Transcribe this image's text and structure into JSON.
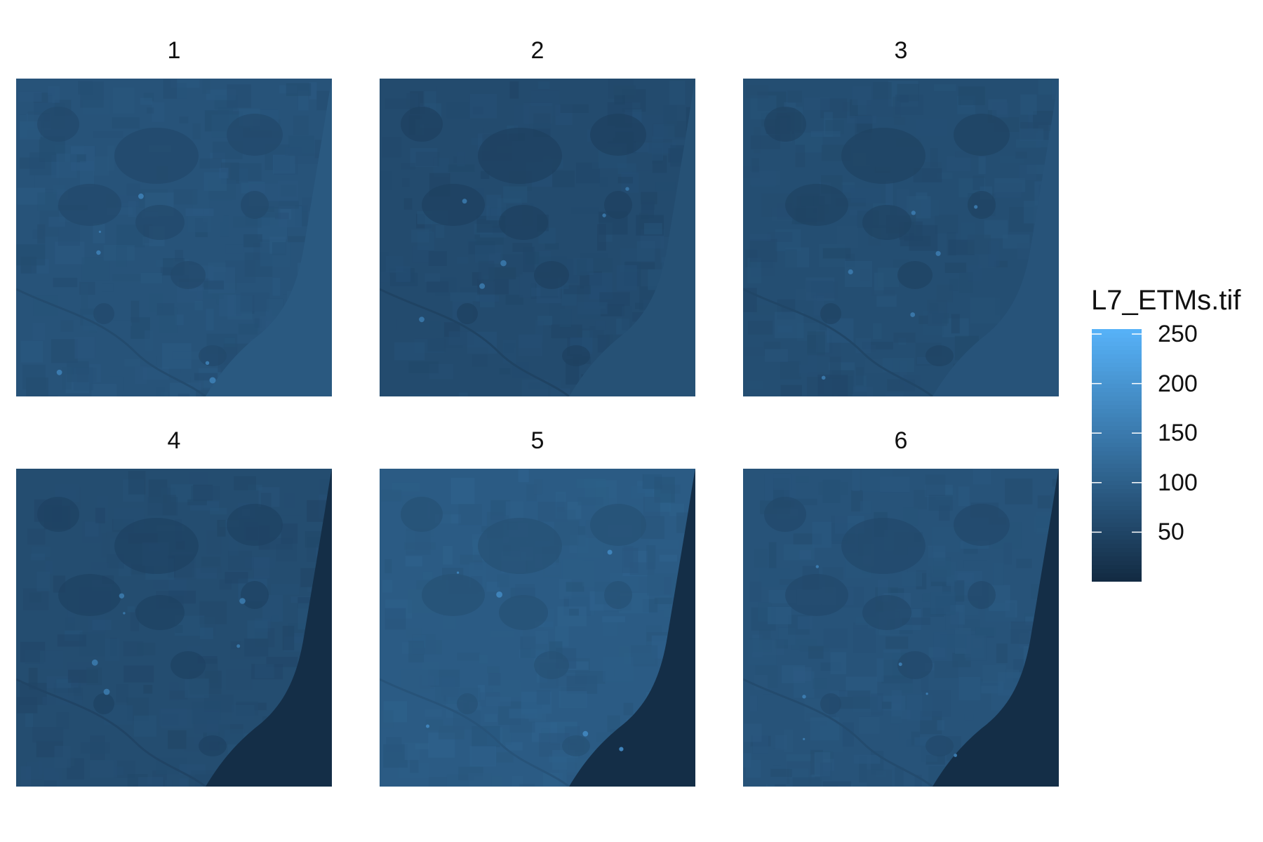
{
  "chart_data": {
    "type": "heatmap",
    "layers": [
      {
        "title": "1",
        "brightness": 0.3,
        "sea": "light"
      },
      {
        "title": "2",
        "brightness": 0.24,
        "sea": "light"
      },
      {
        "title": "3",
        "brightness": 0.26,
        "sea": "light"
      },
      {
        "title": "4",
        "brightness": 0.25,
        "sea": "dark"
      },
      {
        "title": "5",
        "brightness": 0.36,
        "sea": "dark"
      },
      {
        "title": "6",
        "brightness": 0.3,
        "sea": "dark"
      }
    ],
    "legend": {
      "title": "L7_ETMs.tif",
      "ticks": [
        50,
        100,
        150,
        200,
        250
      ],
      "range": [
        0,
        255
      ],
      "color_low": "#132b43",
      "color_high": "#56b1f7"
    }
  }
}
